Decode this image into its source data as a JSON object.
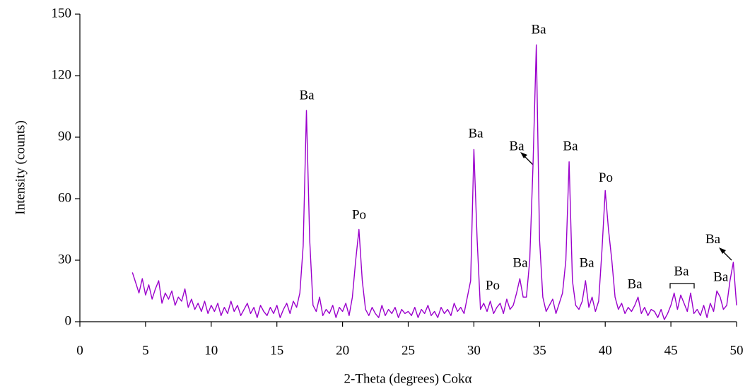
{
  "chart_data": {
    "type": "line",
    "x_label": "2-Theta (degrees) Cokα",
    "y_label": "Intensity (counts)",
    "xlim": [
      0,
      50
    ],
    "xticks": [
      0,
      5,
      10,
      15,
      20,
      25,
      30,
      35,
      40,
      45,
      50
    ],
    "ylim": [
      0,
      150
    ],
    "yticks": [
      0,
      30,
      60,
      90,
      120,
      150
    ],
    "grid": false,
    "x": [
      4,
      4.25,
      4.5,
      4.75,
      5,
      5.25,
      5.5,
      5.75,
      6,
      6.25,
      6.5,
      6.75,
      7,
      7.25,
      7.5,
      7.75,
      8,
      8.25,
      8.5,
      8.75,
      9,
      9.25,
      9.5,
      9.75,
      10,
      10.25,
      10.5,
      10.75,
      11,
      11.25,
      11.5,
      11.75,
      12,
      12.25,
      12.5,
      12.75,
      13,
      13.25,
      13.5,
      13.75,
      14,
      14.25,
      14.5,
      14.75,
      15,
      15.25,
      15.5,
      15.75,
      16,
      16.25,
      16.5,
      16.75,
      17,
      17.25,
      17.5,
      17.75,
      18,
      18.25,
      18.5,
      18.75,
      19,
      19.25,
      19.5,
      19.75,
      20,
      20.25,
      20.5,
      20.75,
      21,
      21.25,
      21.5,
      21.75,
      22,
      22.25,
      22.5,
      22.75,
      23,
      23.25,
      23.5,
      23.75,
      24,
      24.25,
      24.5,
      24.75,
      25,
      25.25,
      25.5,
      25.75,
      26,
      26.25,
      26.5,
      26.75,
      27,
      27.25,
      27.5,
      27.75,
      28,
      28.25,
      28.5,
      28.75,
      29,
      29.25,
      29.5,
      29.75,
      30,
      30.25,
      30.5,
      30.75,
      31,
      31.25,
      31.5,
      31.75,
      32,
      32.25,
      32.5,
      32.75,
      33,
      33.25,
      33.5,
      33.75,
      34,
      34.25,
      34.5,
      34.75,
      35,
      35.25,
      35.5,
      35.75,
      36,
      36.25,
      36.5,
      36.75,
      37,
      37.25,
      37.5,
      37.75,
      38,
      38.25,
      38.5,
      38.75,
      39,
      39.25,
      39.5,
      39.75,
      40,
      40.25,
      40.5,
      40.75,
      41,
      41.25,
      41.5,
      41.75,
      42,
      42.25,
      42.5,
      42.75,
      43,
      43.25,
      43.5,
      43.75,
      44,
      44.25,
      44.5,
      44.75,
      45,
      45.25,
      45.5,
      45.75,
      46,
      46.25,
      46.5,
      46.75,
      47,
      47.25,
      47.5,
      47.75,
      48,
      48.25,
      48.5,
      48.75,
      49,
      49.25,
      49.5,
      49.75,
      50
    ],
    "series": [
      {
        "color": "#9b00cc",
        "values": [
          24,
          19,
          14,
          21,
          13,
          18,
          11,
          16,
          20,
          9,
          14,
          11,
          15,
          8,
          12,
          10,
          16,
          7,
          11,
          6,
          9,
          5,
          10,
          4,
          8,
          5,
          9,
          3,
          7,
          4,
          10,
          5,
          8,
          3,
          6,
          9,
          4,
          7,
          2,
          8,
          5,
          3,
          7,
          4,
          8,
          2,
          6,
          9,
          4,
          10,
          7,
          14,
          37,
          103,
          40,
          8,
          5,
          12,
          3,
          6,
          4,
          8,
          2,
          7,
          5,
          9,
          3,
          12,
          30,
          45,
          20,
          6,
          3,
          7,
          4,
          2,
          8,
          3,
          6,
          4,
          7,
          2,
          6,
          4,
          5,
          3,
          7,
          2,
          6,
          4,
          8,
          3,
          5,
          2,
          7,
          4,
          6,
          3,
          9,
          5,
          7,
          4,
          12,
          20,
          84,
          40,
          6,
          9,
          5,
          10,
          4,
          7,
          9,
          4,
          11,
          6,
          8,
          14,
          21,
          12,
          12,
          30,
          76,
          135,
          40,
          12,
          5,
          8,
          11,
          4,
          9,
          14,
          30,
          78,
          20,
          8,
          6,
          10,
          20,
          7,
          12,
          5,
          10,
          35,
          64,
          45,
          30,
          12,
          6,
          9,
          4,
          7,
          5,
          8,
          12,
          4,
          7,
          3,
          6,
          5,
          2,
          6,
          1,
          4,
          8,
          14,
          6,
          13,
          9,
          5,
          14,
          4,
          6,
          3,
          8,
          2,
          9,
          5,
          15,
          12,
          6,
          8,
          20,
          29,
          8
        ]
      }
    ],
    "annotations": [
      {
        "text": "Ba",
        "x": 17.28,
        "y": 110
      },
      {
        "text": "Po",
        "x": 21.26,
        "y": 51.7
      },
      {
        "text": "Ba",
        "x": 30.14,
        "y": 91.4
      },
      {
        "text": "Ba",
        "x": 33.26,
        "y": 85.2
      },
      {
        "text": "Ba",
        "x": 34.93,
        "y": 142
      },
      {
        "text": "Ba",
        "x": 37.35,
        "y": 85.2
      },
      {
        "text": "Po",
        "x": 40.04,
        "y": 69.7
      },
      {
        "text": "Ba",
        "x": 33.53,
        "y": 28.3
      },
      {
        "text": "Po",
        "x": 31.43,
        "y": 17.2
      },
      {
        "text": "Ba",
        "x": 38.59,
        "y": 28.3
      },
      {
        "text": "Ba",
        "x": 42.25,
        "y": 17.9
      },
      {
        "text": "Ba",
        "x": 45.8,
        "y": 24.1
      },
      {
        "text": "Ba",
        "x": 48.8,
        "y": 21.4
      },
      {
        "text": "Ba",
        "x": 48.2,
        "y": 39.7
      }
    ]
  }
}
